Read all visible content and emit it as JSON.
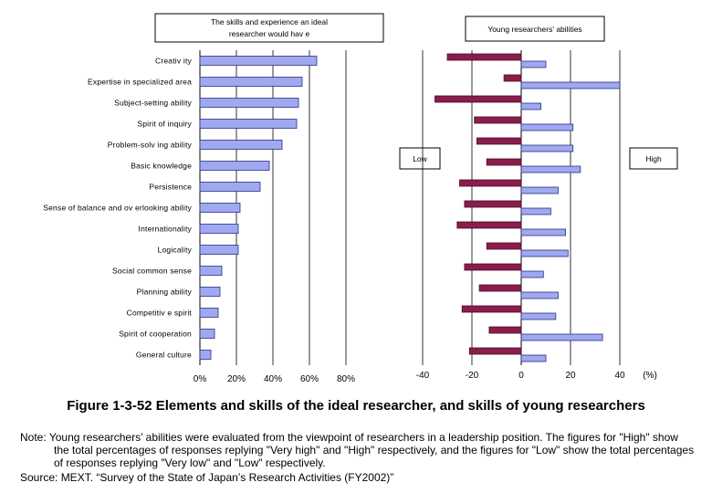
{
  "left_chart": {
    "title_line1": "The skills and experience an ideal",
    "title_line2": "researcher would hav e",
    "chart_data": {
      "type": "bar",
      "orientation": "horizontal",
      "categories": [
        "Creativ ity",
        "Expertise in specialized area",
        "Subject-setting ability",
        "Spirit of inquiry",
        "Problem-solv ing ability",
        "Basic knowledge",
        "Persistence",
        "Sense of balance and ov erlooking ability",
        "Internationality",
        "Logicality",
        "Social common sense",
        "Planning ability",
        "Competitiv e spirit",
        "Spirit of cooperation",
        "General culture"
      ],
      "values": [
        64,
        56,
        54,
        53,
        45,
        38,
        33,
        22,
        21,
        21,
        12,
        11,
        10,
        8,
        6
      ],
      "xlim": [
        0,
        80
      ],
      "ticks": [
        "0%",
        "20%",
        "40%",
        "60%",
        "80%"
      ],
      "grid": true
    }
  },
  "right_chart": {
    "title": "Young researchers' abilities",
    "low_label": "Low",
    "high_label": "High",
    "unit_label": "(%)",
    "chart_data": {
      "type": "bar",
      "orientation": "horizontal",
      "categories": [
        "Creativ ity",
        "Expertise in specialized area",
        "Subject-setting ability",
        "Spirit of inquiry",
        "Problem-solv ing ability",
        "Basic knowledge",
        "Persistence",
        "Sense of balance and ov erlooking ability",
        "Internationality",
        "Logicality",
        "Social common sense",
        "Planning ability",
        "Competitiv e spirit",
        "Spirit of cooperation",
        "General culture"
      ],
      "series": [
        {
          "name": "Low",
          "values": [
            -30,
            -7,
            -35,
            -19,
            -18,
            -14,
            -25,
            -23,
            -26,
            -14,
            -23,
            -17,
            -24,
            -13,
            -21
          ]
        },
        {
          "name": "High",
          "values": [
            10,
            40,
            8,
            21,
            21,
            24,
            15,
            12,
            18,
            19,
            9,
            15,
            14,
            33,
            10
          ]
        }
      ],
      "xlim": [
        -40,
        40
      ],
      "ticks": [
        "-40",
        "-20",
        "0",
        "20",
        "40"
      ],
      "grid": true
    }
  },
  "caption": "Figure 1-3-52 Elements and skills of the ideal researcher, and skills of young researchers",
  "note_label": "Note:",
  "note_text": "Young researchers’ abilities were evaluated from the viewpoint of researchers in a leadership position. The figures for \"High\" show the total percentages of responses replying \"Very high\" and \"High\" respectively, and the figures for \"Low\" show the total percentages of responses replying \"Very low\" and \"Low\" respectively.",
  "source": "Source: MEXT. “Survey of the State of Japan’s Research Activities (FY2002)”"
}
